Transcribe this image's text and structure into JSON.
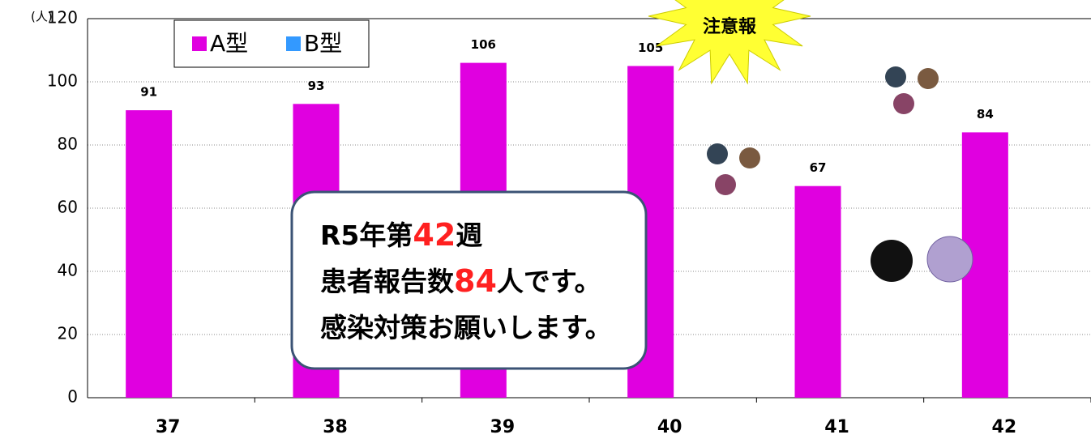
{
  "chart_data": {
    "type": "bar",
    "y_label": "(人)",
    "categories": [
      "37",
      "38",
      "39",
      "40",
      "41",
      "42"
    ],
    "series": [
      {
        "name": "A型",
        "color": "#e000e0",
        "values": [
          91,
          93,
          106,
          105,
          67,
          84
        ]
      },
      {
        "name": "B型",
        "color": "#3399ff",
        "values": [
          0,
          0,
          0,
          0,
          0,
          0
        ]
      }
    ],
    "ylim": [
      0,
      120
    ],
    "yticks": [
      0,
      20,
      40,
      60,
      80,
      100,
      120
    ],
    "grid": true,
    "legend": "upper-left",
    "annotations": {
      "callout": [
        [
          "R5年第",
          "42",
          "週"
        ],
        [
          "患者報告数",
          "84",
          "人です。"
        ],
        [
          "感染対策お願いします。"
        ]
      ],
      "badge": "注意報"
    }
  }
}
